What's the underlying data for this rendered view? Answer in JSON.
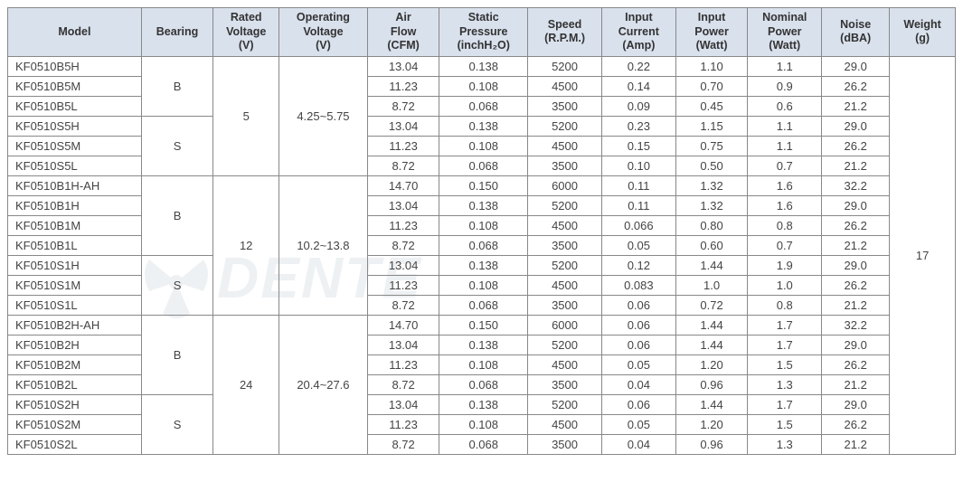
{
  "headers": {
    "model": "Model",
    "bearing": "Bearing",
    "rated_voltage_l1": "Rated",
    "rated_voltage_l2": "Voltage",
    "rated_voltage_l3": "(V)",
    "op_voltage_l1": "Operating",
    "op_voltage_l2": "Voltage",
    "op_voltage_l3": "(V)",
    "airflow_l1": "Air",
    "airflow_l2": "Flow",
    "airflow_l3": "(CFM)",
    "static_l1": "Static",
    "static_l2": "Pressure",
    "static_l3": "(inchH₂O)",
    "speed_l1": "Speed",
    "speed_l2": "(R.P.M.)",
    "icurrent_l1": "Input",
    "icurrent_l2": "Current",
    "icurrent_l3": "(Amp)",
    "ipower_l1": "Input",
    "ipower_l2": "Power",
    "ipower_l3": "(Watt)",
    "npower_l1": "Nominal",
    "npower_l2": "Power",
    "npower_l3": "(Watt)",
    "noise_l1": "Noise",
    "noise_l2": "(dBA)",
    "weight_l1": "Weight",
    "weight_l2": "(g)"
  },
  "groups": [
    {
      "bearing_groups": [
        {
          "bearing": "B",
          "rows": 3
        },
        {
          "bearing": "S",
          "rows": 3
        }
      ],
      "rated_voltage": "5",
      "op_voltage": "4.25~5.75",
      "rows": [
        {
          "model": "KF0510B5H",
          "airflow": "13.04",
          "static": "0.138",
          "speed": "5200",
          "icurrent": "0.22",
          "ipower": "1.10",
          "npower": "1.1",
          "noise": "29.0"
        },
        {
          "model": "KF0510B5M",
          "airflow": "11.23",
          "static": "0.108",
          "speed": "4500",
          "icurrent": "0.14",
          "ipower": "0.70",
          "npower": "0.9",
          "noise": "26.2"
        },
        {
          "model": "KF0510B5L",
          "airflow": "8.72",
          "static": "0.068",
          "speed": "3500",
          "icurrent": "0.09",
          "ipower": "0.45",
          "npower": "0.6",
          "noise": "21.2"
        },
        {
          "model": "KF0510S5H",
          "airflow": "13.04",
          "static": "0.138",
          "speed": "5200",
          "icurrent": "0.23",
          "ipower": "1.15",
          "npower": "1.1",
          "noise": "29.0"
        },
        {
          "model": "KF0510S5M",
          "airflow": "11.23",
          "static": "0.108",
          "speed": "4500",
          "icurrent": "0.15",
          "ipower": "0.75",
          "npower": "1.1",
          "noise": "26.2"
        },
        {
          "model": "KF0510S5L",
          "airflow": "8.72",
          "static": "0.068",
          "speed": "3500",
          "icurrent": "0.10",
          "ipower": "0.50",
          "npower": "0.7",
          "noise": "21.2"
        }
      ]
    },
    {
      "bearing_groups": [
        {
          "bearing": "B",
          "rows": 4
        },
        {
          "bearing": "S",
          "rows": 3
        }
      ],
      "rated_voltage": "12",
      "op_voltage": "10.2~13.8",
      "rows": [
        {
          "model": "KF0510B1H-AH",
          "airflow": "14.70",
          "static": "0.150",
          "speed": "6000",
          "icurrent": "0.11",
          "ipower": "1.32",
          "npower": "1.6",
          "noise": "32.2"
        },
        {
          "model": "KF0510B1H",
          "airflow": "13.04",
          "static": "0.138",
          "speed": "5200",
          "icurrent": "0.11",
          "ipower": "1.32",
          "npower": "1.6",
          "noise": "29.0"
        },
        {
          "model": "KF0510B1M",
          "airflow": "11.23",
          "static": "0.108",
          "speed": "4500",
          "icurrent": "0.066",
          "ipower": "0.80",
          "npower": "0.8",
          "noise": "26.2"
        },
        {
          "model": "KF0510B1L",
          "airflow": "8.72",
          "static": "0.068",
          "speed": "3500",
          "icurrent": "0.05",
          "ipower": "0.60",
          "npower": "0.7",
          "noise": "21.2"
        },
        {
          "model": "KF0510S1H",
          "airflow": "13.04",
          "static": "0.138",
          "speed": "5200",
          "icurrent": "0.12",
          "ipower": "1.44",
          "npower": "1.9",
          "noise": "29.0"
        },
        {
          "model": "KF0510S1M",
          "airflow": "11.23",
          "static": "0.108",
          "speed": "4500",
          "icurrent": "0.083",
          "ipower": "1.0",
          "npower": "1.0",
          "noise": "26.2"
        },
        {
          "model": "KF0510S1L",
          "airflow": "8.72",
          "static": "0.068",
          "speed": "3500",
          "icurrent": "0.06",
          "ipower": "0.72",
          "npower": "0.8",
          "noise": "21.2"
        }
      ]
    },
    {
      "bearing_groups": [
        {
          "bearing": "B",
          "rows": 4
        },
        {
          "bearing": "S",
          "rows": 3
        }
      ],
      "rated_voltage": "24",
      "op_voltage": "20.4~27.6",
      "rows": [
        {
          "model": "KF0510B2H-AH",
          "airflow": "14.70",
          "static": "0.150",
          "speed": "6000",
          "icurrent": "0.06",
          "ipower": "1.44",
          "npower": "1.7",
          "noise": "32.2"
        },
        {
          "model": "KF0510B2H",
          "airflow": "13.04",
          "static": "0.138",
          "speed": "5200",
          "icurrent": "0.06",
          "ipower": "1.44",
          "npower": "1.7",
          "noise": "29.0"
        },
        {
          "model": "KF0510B2M",
          "airflow": "11.23",
          "static": "0.108",
          "speed": "4500",
          "icurrent": "0.05",
          "ipower": "1.20",
          "npower": "1.5",
          "noise": "26.2"
        },
        {
          "model": "KF0510B2L",
          "airflow": "8.72",
          "static": "0.068",
          "speed": "3500",
          "icurrent": "0.04",
          "ipower": "0.96",
          "npower": "1.3",
          "noise": "21.2"
        },
        {
          "model": "KF0510S2H",
          "airflow": "13.04",
          "static": "0.138",
          "speed": "5200",
          "icurrent": "0.06",
          "ipower": "1.44",
          "npower": "1.7",
          "noise": "29.0"
        },
        {
          "model": "KF0510S2M",
          "airflow": "11.23",
          "static": "0.108",
          "speed": "4500",
          "icurrent": "0.05",
          "ipower": "1.20",
          "npower": "1.5",
          "noise": "26.2"
        },
        {
          "model": "KF0510S2L",
          "airflow": "8.72",
          "static": "0.068",
          "speed": "3500",
          "icurrent": "0.04",
          "ipower": "0.96",
          "npower": "1.3",
          "noise": "21.2"
        }
      ]
    }
  ],
  "weight": "17",
  "watermark_text": "DENTE",
  "colors": {
    "header_bg": "#d9e1ed",
    "border": "#888888",
    "text": "#444444"
  }
}
